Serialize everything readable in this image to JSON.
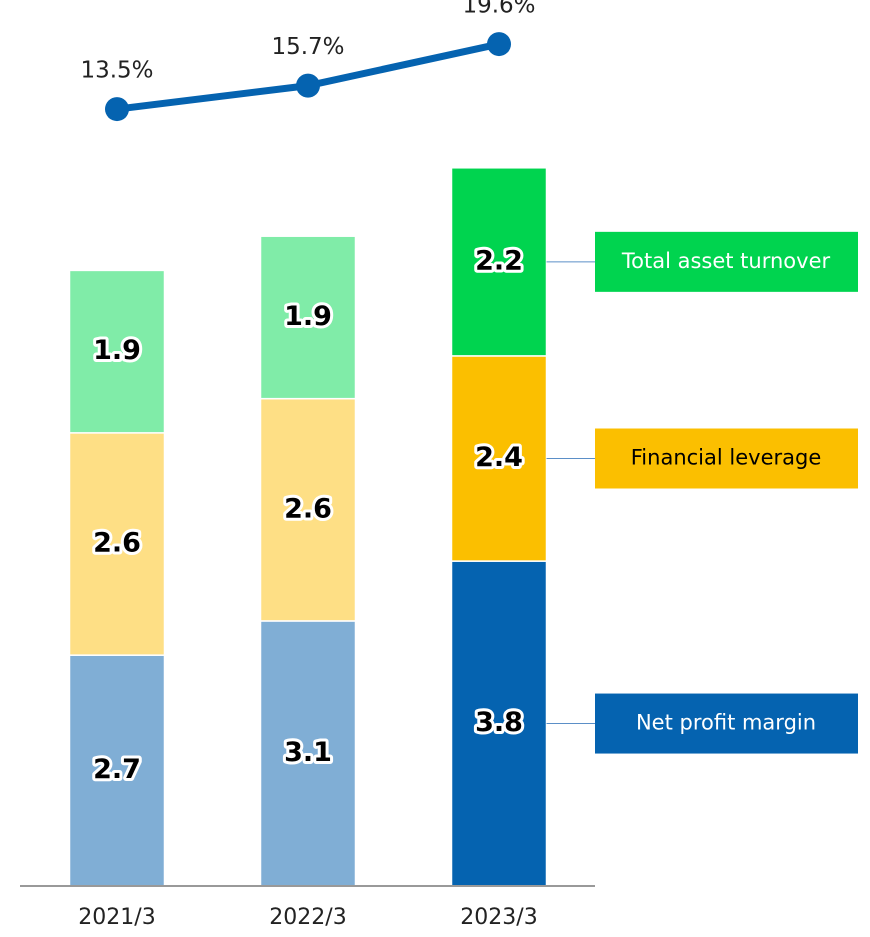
{
  "chart_data": {
    "type": "bar",
    "stacked": true,
    "categories": [
      "2021/3",
      "2022/3",
      "2023/3"
    ],
    "series": [
      {
        "name": "Net profit margin",
        "color": "#0563b0",
        "colors": [
          "#80aed5",
          "#80aed5",
          "#0563b0"
        ],
        "values": [
          2.7,
          3.1,
          3.8
        ]
      },
      {
        "name": "Financial leverage",
        "color": "#fbbf00",
        "colors": [
          "#fedf85",
          "#fedf85",
          "#fbbf00"
        ],
        "values": [
          2.6,
          2.6,
          2.4
        ]
      },
      {
        "name": "Total asset turnover",
        "color": "#00d44f",
        "colors": [
          "#80eca8",
          "#80eca8",
          "#00d44f"
        ],
        "values": [
          1.9,
          1.9,
          2.2
        ]
      },
      {
        "type": "line",
        "color": "#0563b0",
        "values": [
          13.5,
          15.7,
          19.6
        ],
        "value_labels": [
          "13.5%",
          "15.7%",
          "19.6%"
        ]
      }
    ]
  }
}
